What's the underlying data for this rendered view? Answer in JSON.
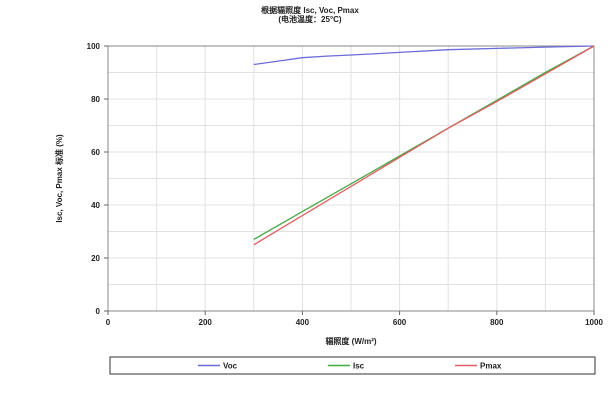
{
  "chart_data": {
    "type": "line",
    "title": "根据辐照度 Isc, Voc, Pmax",
    "subtitle": "(电池温度：25°C)",
    "xlabel": "辐照度 (W/m²)",
    "ylabel": "Isc, Voc, Pmax 标准 (%)",
    "xlim": [
      0,
      1000
    ],
    "ylim": [
      0,
      100
    ],
    "xticks": [
      0,
      200,
      400,
      600,
      800,
      1000
    ],
    "yticks": [
      0,
      20,
      40,
      60,
      80,
      100
    ],
    "grid": true,
    "legend_position": "bottom",
    "series": [
      {
        "name": "Voc",
        "color": "#6b6bdc",
        "x": [
          300,
          350,
          400,
          450,
          500,
          600,
          700,
          800,
          900,
          1000
        ],
        "y": [
          93,
          94.3,
          95.6,
          96.2,
          96.6,
          97.6,
          98.6,
          99.1,
          99.6,
          100
        ]
      },
      {
        "name": "Isc",
        "color": "#47a847",
        "x": [
          300,
          400,
          500,
          600,
          700,
          800,
          900,
          1000
        ],
        "y": [
          27,
          37.5,
          48,
          58.5,
          69,
          79.5,
          90,
          100
        ]
      },
      {
        "name": "Pmax",
        "color": "#e06060",
        "x": [
          300,
          400,
          500,
          600,
          700,
          800,
          900,
          1000
        ],
        "y": [
          25,
          36,
          47,
          58,
          69,
          79,
          89.5,
          100
        ]
      }
    ]
  }
}
